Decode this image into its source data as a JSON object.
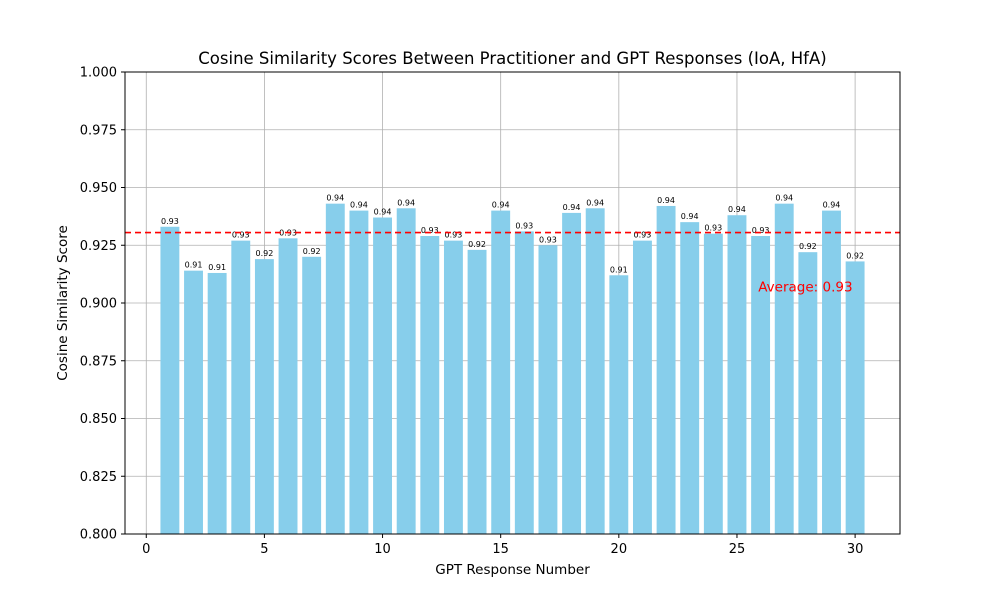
{
  "chart_data": {
    "type": "bar",
    "title": "Cosine Similarity Scores Between Practitioner and GPT Responses (IoA, HfA)",
    "xlabel": "GPT Response Number",
    "ylabel": "Cosine Similarity Score",
    "x": [
      1,
      2,
      3,
      4,
      5,
      6,
      7,
      8,
      9,
      10,
      11,
      12,
      13,
      14,
      15,
      16,
      17,
      18,
      19,
      20,
      21,
      22,
      23,
      24,
      25,
      26,
      27,
      28,
      29,
      30
    ],
    "values": [
      0.933,
      0.914,
      0.913,
      0.927,
      0.919,
      0.928,
      0.92,
      0.943,
      0.94,
      0.937,
      0.941,
      0.929,
      0.927,
      0.923,
      0.94,
      0.931,
      0.925,
      0.939,
      0.941,
      0.912,
      0.927,
      0.942,
      0.935,
      0.93,
      0.938,
      0.929,
      0.943,
      0.922,
      0.94,
      0.918
    ],
    "value_labels": [
      "0.93",
      "0.91",
      "0.91",
      "0.93",
      "0.92",
      "0.93",
      "0.92",
      "0.94",
      "0.94",
      "0.94",
      "0.94",
      "0.93",
      "0.93",
      "0.92",
      "0.94",
      "0.93",
      "0.93",
      "0.94",
      "0.94",
      "0.91",
      "0.93",
      "0.94",
      "0.94",
      "0.93",
      "0.94",
      "0.93",
      "0.94",
      "0.92",
      "0.94",
      "0.92"
    ],
    "xlim": [
      -0.9,
      31.9
    ],
    "ylim": [
      0.8,
      1.0
    ],
    "x_ticks": [
      0,
      5,
      10,
      15,
      20,
      25,
      30
    ],
    "x_tick_labels": [
      "0",
      "5",
      "10",
      "15",
      "20",
      "25",
      "30"
    ],
    "y_ticks": [
      0.8,
      0.825,
      0.85,
      0.875,
      0.9,
      0.925,
      0.95,
      0.975,
      1.0
    ],
    "y_tick_labels": [
      "0.800",
      "0.825",
      "0.850",
      "0.875",
      "0.900",
      "0.925",
      "0.950",
      "0.975",
      "1.000"
    ],
    "grid": true,
    "bar_color": "#87ceeb",
    "average": {
      "value": 0.9305,
      "label": "Average: 0.93",
      "color": "#ff0000",
      "line_style": "dashed",
      "label_anchor": {
        "x": 25.9,
        "y": 0.905
      }
    }
  }
}
